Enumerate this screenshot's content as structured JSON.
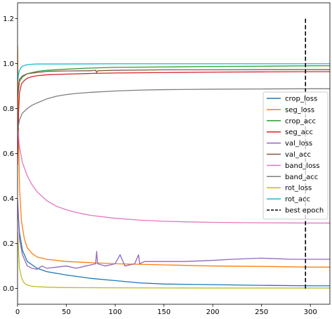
{
  "chart_data": {
    "type": "line",
    "title": "",
    "xlabel": "",
    "ylabel": "",
    "xlim": [
      0,
      320
    ],
    "ylim": [
      -0.07,
      1.27
    ],
    "x_ticks": [
      0,
      50,
      100,
      150,
      200,
      250,
      300
    ],
    "y_ticks": [
      0.0,
      0.2,
      0.4,
      0.6,
      0.8,
      1.0,
      1.2
    ],
    "x_tick_labels": [
      "0",
      "50",
      "100",
      "150",
      "200",
      "250",
      "300"
    ],
    "y_tick_labels": [
      "0.0",
      "0.2",
      "0.4",
      "0.6",
      "0.8",
      "1.0",
      "1.2"
    ],
    "grid": false,
    "legend_position": "center-right",
    "series": [
      {
        "name": "crop_loss",
        "color": "#1f77b4",
        "x": [
          0,
          2,
          5,
          10,
          20,
          30,
          50,
          75,
          100,
          125,
          150,
          200,
          250,
          300,
          320
        ],
        "y": [
          0.37,
          0.25,
          0.17,
          0.12,
          0.09,
          0.075,
          0.06,
          0.045,
          0.035,
          0.025,
          0.02,
          0.017,
          0.014,
          0.012,
          0.012
        ]
      },
      {
        "name": "seg_loss",
        "color": "#ff7f0e",
        "x": [
          0,
          1,
          2,
          4,
          7,
          10,
          15,
          20,
          30,
          50,
          75,
          100,
          150,
          200,
          250,
          300,
          320
        ],
        "y": [
          1.08,
          0.7,
          0.45,
          0.3,
          0.22,
          0.18,
          0.155,
          0.14,
          0.13,
          0.12,
          0.115,
          0.11,
          0.105,
          0.1,
          0.098,
          0.095,
          0.095
        ]
      },
      {
        "name": "crop_acc",
        "color": "#2ca02c",
        "x": [
          0,
          2,
          5,
          10,
          20,
          30,
          50,
          75,
          100,
          150,
          200,
          250,
          300,
          320
        ],
        "y": [
          0.85,
          0.92,
          0.94,
          0.955,
          0.965,
          0.97,
          0.975,
          0.98,
          0.983,
          0.985,
          0.987,
          0.988,
          0.99,
          0.99
        ]
      },
      {
        "name": "seg_acc",
        "color": "#d62728",
        "x": [
          0,
          1,
          2,
          4,
          7,
          10,
          15,
          20,
          30,
          50,
          75,
          100,
          150,
          200,
          250,
          300,
          320
        ],
        "y": [
          0.55,
          0.78,
          0.87,
          0.91,
          0.925,
          0.935,
          0.942,
          0.946,
          0.95,
          0.953,
          0.956,
          0.958,
          0.96,
          0.962,
          0.963,
          0.964,
          0.964
        ]
      },
      {
        "name": "val_loss",
        "color": "#9467bd",
        "x": [
          0,
          2,
          5,
          10,
          15,
          20,
          25,
          30,
          40,
          50,
          60,
          70,
          75,
          80,
          81,
          82,
          90,
          100,
          105,
          110,
          120,
          124,
          125,
          130,
          150,
          170,
          200,
          220,
          250,
          280,
          300,
          320
        ],
        "y": [
          0.4,
          0.22,
          0.15,
          0.1,
          0.09,
          0.085,
          0.1,
          0.09,
          0.095,
          0.1,
          0.09,
          0.1,
          0.105,
          0.11,
          0.165,
          0.11,
          0.1,
          0.11,
          0.15,
          0.1,
          0.11,
          0.15,
          0.11,
          0.12,
          0.12,
          0.12,
          0.125,
          0.13,
          0.135,
          0.13,
          0.13,
          0.13
        ]
      },
      {
        "name": "val_acc",
        "color": "#8c564b",
        "x": [
          0,
          2,
          5,
          10,
          20,
          30,
          50,
          75,
          80,
          81,
          82,
          100,
          150,
          200,
          250,
          300,
          320
        ],
        "y": [
          0.85,
          0.93,
          0.945,
          0.955,
          0.96,
          0.965,
          0.967,
          0.968,
          0.97,
          0.96,
          0.968,
          0.97,
          0.972,
          0.972,
          0.973,
          0.973,
          0.973
        ]
      },
      {
        "name": "band_loss",
        "color": "#e377c2",
        "x": [
          0,
          2,
          5,
          10,
          15,
          20,
          30,
          40,
          50,
          60,
          75,
          100,
          125,
          150,
          175,
          200,
          250,
          300,
          320
        ],
        "y": [
          0.72,
          0.63,
          0.56,
          0.5,
          0.46,
          0.43,
          0.39,
          0.365,
          0.35,
          0.338,
          0.325,
          0.312,
          0.304,
          0.299,
          0.296,
          0.294,
          0.292,
          0.291,
          0.291
        ]
      },
      {
        "name": "band_acc",
        "color": "#7f7f7f",
        "x": [
          0,
          2,
          5,
          10,
          15,
          20,
          30,
          40,
          50,
          60,
          75,
          100,
          125,
          150,
          175,
          200,
          250,
          300,
          320
        ],
        "y": [
          0.7,
          0.75,
          0.78,
          0.8,
          0.815,
          0.825,
          0.843,
          0.855,
          0.862,
          0.867,
          0.872,
          0.878,
          0.882,
          0.884,
          0.885,
          0.886,
          0.887,
          0.888,
          0.888
        ]
      },
      {
        "name": "rot_loss",
        "color": "#bcbd22",
        "x": [
          0,
          1,
          2,
          4,
          6,
          8,
          10,
          15,
          20,
          30,
          50,
          100,
          200,
          300,
          320
        ],
        "y": [
          0.25,
          0.17,
          0.09,
          0.05,
          0.03,
          0.02,
          0.015,
          0.01,
          0.008,
          0.006,
          0.004,
          0.003,
          0.002,
          0.002,
          0.002
        ]
      },
      {
        "name": "rot_acc",
        "color": "#17becf",
        "x": [
          0,
          1,
          2,
          4,
          6,
          8,
          10,
          15,
          20,
          30,
          50,
          100,
          200,
          300,
          320
        ],
        "y": [
          0.92,
          0.95,
          0.97,
          0.985,
          0.99,
          0.993,
          0.995,
          0.997,
          0.998,
          0.998,
          0.998,
          0.999,
          0.999,
          0.999,
          0.999
        ]
      }
    ],
    "markers": [
      {
        "name": "best epoch",
        "color": "#000000",
        "style": "dashed",
        "x": 295,
        "y_range": [
          0.0,
          1.2
        ]
      }
    ]
  }
}
